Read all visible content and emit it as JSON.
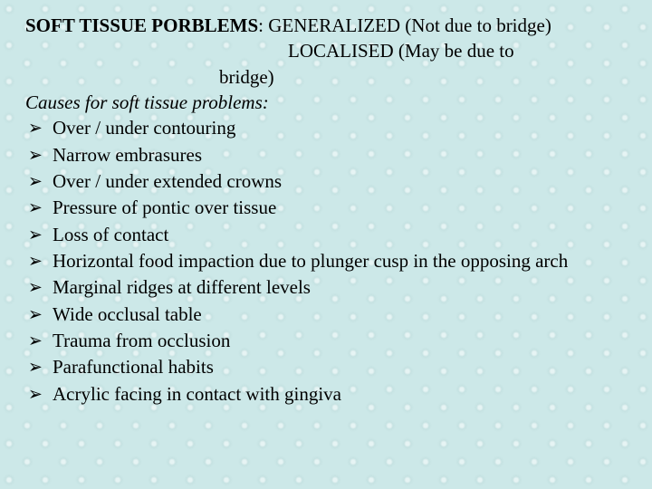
{
  "colors": {
    "background_base": "#cce8e8",
    "text": "#000000"
  },
  "typography": {
    "font_family": "Times New Roman",
    "body_fontsize_pt": 16,
    "line_height": 1.35
  },
  "heading": {
    "label_bold": "SOFT TISSUE PORBLEMS",
    "label_rest": ": GENERALIZED (Not due to bridge)",
    "line2": "LOCALISED (May be due to",
    "line3": "bridge)"
  },
  "subheading": {
    "text": "Causes for soft tissue problems:"
  },
  "bullets": {
    "glyph": "➢",
    "items": [
      "Over / under contouring",
      "Narrow embrasures",
      "Over / under extended crowns",
      "Pressure of pontic over tissue",
      "Loss of contact",
      "Horizontal food impaction due to plunger cusp in the opposing arch",
      "Marginal ridges at different levels",
      "Wide occlusal table",
      "Trauma from occlusion",
      "Parafunctional habits",
      "Acrylic facing in contact with gingiva"
    ]
  }
}
